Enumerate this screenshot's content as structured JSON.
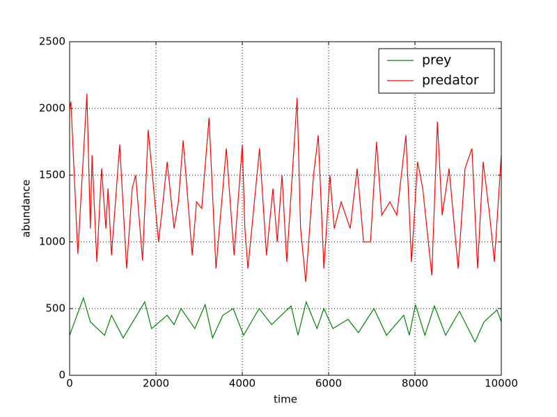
{
  "chart_data": {
    "type": "line",
    "xlabel": "time",
    "ylabel": "abundance",
    "xlim": [
      0,
      10000
    ],
    "xticks": [
      0,
      2000,
      4000,
      6000,
      8000,
      10000
    ],
    "ylim": [
      0,
      2500
    ],
    "yticks": [
      0,
      500,
      1000,
      1500,
      2000,
      2500
    ],
    "grid": true,
    "legend": "upper right",
    "series": [
      {
        "name": "prey",
        "color": "#008000",
        "x": [
          0,
          320,
          480,
          810,
          970,
          1240,
          1740,
          1900,
          2260,
          2420,
          2580,
          2900,
          3140,
          3310,
          3550,
          3790,
          4030,
          4390,
          4680,
          5130,
          5290,
          5480,
          5730,
          5890,
          6100,
          6450,
          6690,
          7050,
          7340,
          7740,
          7870,
          8010,
          8230,
          8450,
          8710,
          9030,
          9390,
          9600,
          9900,
          10000
        ],
        "values": [
          300,
          580,
          400,
          300,
          450,
          280,
          550,
          350,
          450,
          380,
          500,
          350,
          530,
          280,
          450,
          500,
          300,
          500,
          380,
          520,
          300,
          550,
          350,
          500,
          350,
          420,
          320,
          500,
          300,
          450,
          300,
          530,
          300,
          520,
          300,
          480,
          250,
          400,
          490,
          400
        ]
      },
      {
        "name": "predator",
        "color": "#ff0000",
        "x": [
          0,
          30,
          190,
          400,
          480,
          520,
          630,
          740,
          840,
          890,
          970,
          1160,
          1320,
          1450,
          1530,
          1690,
          1820,
          2060,
          2130,
          2260,
          2420,
          2520,
          2630,
          2840,
          2940,
          3060,
          3230,
          3390,
          3630,
          3810,
          4000,
          4060,
          4130,
          4400,
          4560,
          4710,
          4810,
          4920,
          5030,
          5270,
          5350,
          5470,
          5650,
          5760,
          5890,
          6030,
          6130,
          6290,
          6500,
          6660,
          6810,
          6970,
          7110,
          7230,
          7420,
          7580,
          7790,
          7920,
          8060,
          8180,
          8390,
          8520,
          8630,
          8790,
          9000,
          9160,
          9320,
          9450,
          9580,
          9730,
          9840,
          10000
        ],
        "values": [
          2000,
          2050,
          910,
          2110,
          1100,
          1650,
          850,
          1550,
          1100,
          1400,
          900,
          1730,
          800,
          1400,
          1500,
          860,
          1840,
          1000,
          1200,
          1600,
          1100,
          1300,
          1760,
          900,
          1300,
          1250,
          1930,
          800,
          1700,
          900,
          1730,
          1100,
          800,
          1700,
          900,
          1400,
          1000,
          1500,
          850,
          2080,
          1100,
          700,
          1500,
          1800,
          800,
          1500,
          1100,
          1300,
          1100,
          1550,
          1000,
          1000,
          1750,
          1200,
          1300,
          1200,
          1800,
          850,
          1600,
          1400,
          750,
          1900,
          1200,
          1550,
          800,
          1550,
          1700,
          800,
          1600,
          1200,
          850,
          1650
        ]
      }
    ]
  }
}
